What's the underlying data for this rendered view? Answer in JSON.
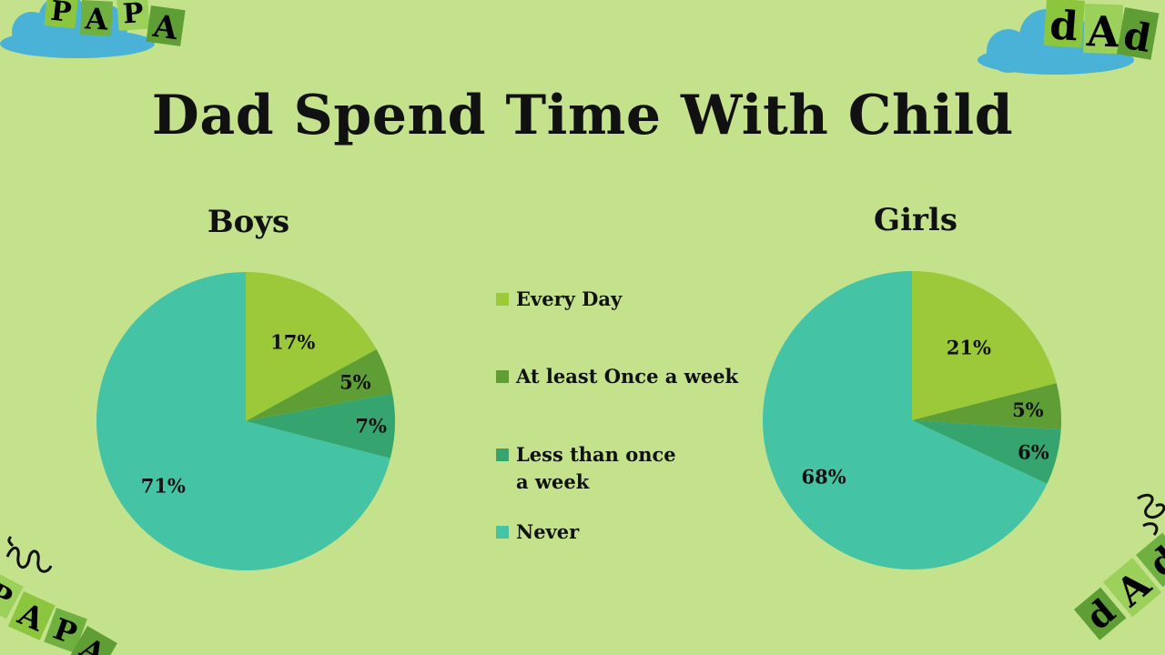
{
  "title": "Dad Spend Time With Child",
  "colors": {
    "background": "#c4e28c",
    "every_day": "#9bc93a",
    "once_week": "#5e9e34",
    "less_than": "#35a46e",
    "never": "#44c3a5",
    "cloud": "#4ab2d6"
  },
  "legend": [
    {
      "label": "Every Day",
      "color": "#9bc93a"
    },
    {
      "label": "At least Once a week",
      "color": "#5e9e34"
    },
    {
      "label": "Less than once a week",
      "color": "#35a46e"
    },
    {
      "label": "Never",
      "color": "#44c3a5"
    }
  ],
  "decor": {
    "top_left": [
      "P",
      "A",
      "P",
      "A"
    ],
    "top_right": [
      "d",
      "A",
      "d"
    ],
    "bottom_left": [
      "P",
      "A",
      "P",
      "A"
    ],
    "bottom_right": [
      "d",
      "A",
      "d"
    ]
  },
  "chart_data": [
    {
      "type": "pie",
      "title": "Boys",
      "categories": [
        "Every Day",
        "At least Once a week",
        "Less than once a week",
        "Never"
      ],
      "values": [
        17,
        5,
        7,
        71
      ],
      "labels": [
        "17%",
        "5%",
        "7%",
        "71%"
      ]
    },
    {
      "type": "pie",
      "title": "Girls",
      "categories": [
        "Every Day",
        "At least Once a week",
        "Less than once a week",
        "Never"
      ],
      "values": [
        21,
        5,
        6,
        68
      ],
      "labels": [
        "21%",
        "5%",
        "6%",
        "68%"
      ]
    }
  ]
}
